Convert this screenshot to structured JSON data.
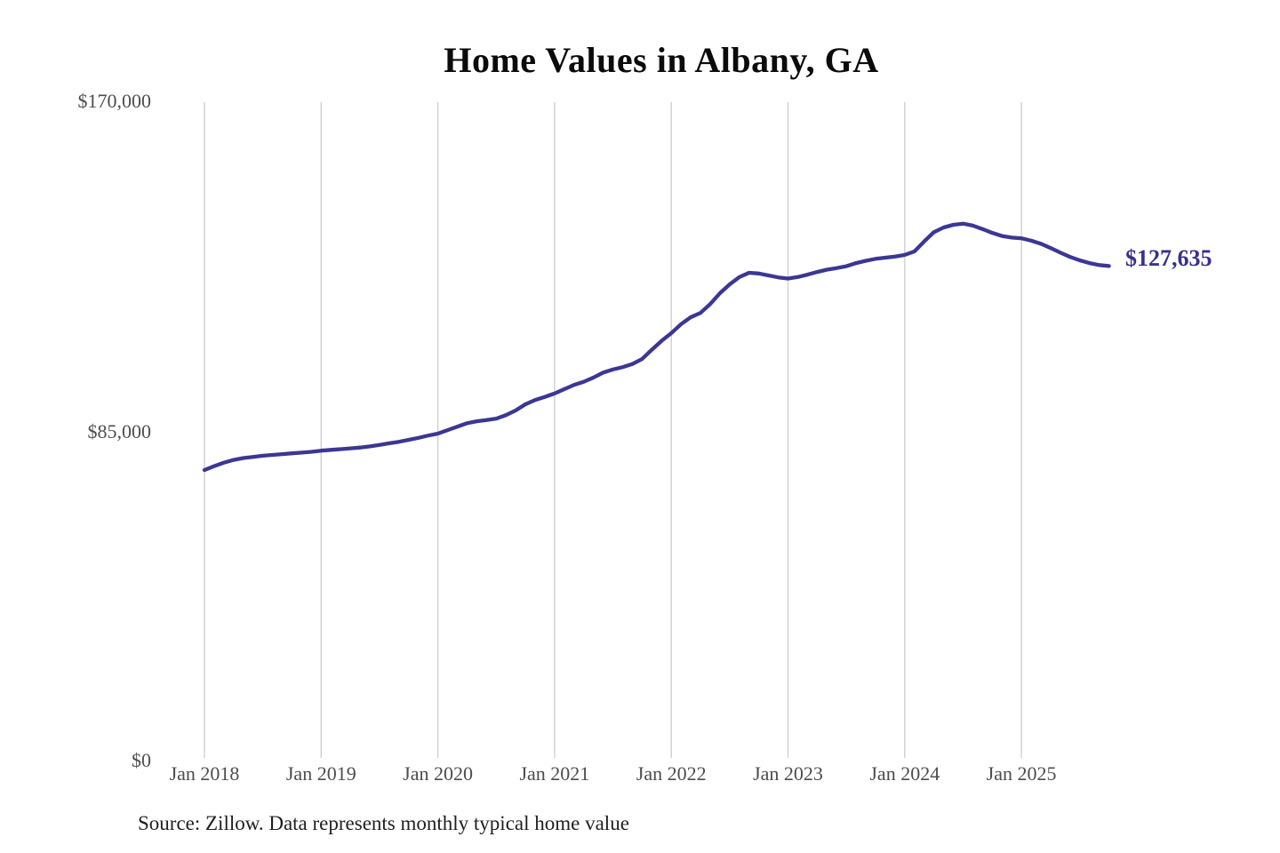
{
  "chart": {
    "title": "Home Values in Albany, GA",
    "end_label": "$127,635",
    "source": "Source: Zillow. Data represents monthly typical home value"
  },
  "colors": {
    "line": "#3b3793",
    "value_label": "#37318c",
    "grid": "#cccccc",
    "axis_label": "#4d4d4d",
    "title": "#0b0b0b",
    "background": "#ffffff"
  },
  "chart_data": {
    "type": "line",
    "title": "Home Values in Albany, GA",
    "xlabel": "",
    "ylabel": "",
    "ylim": [
      0,
      170000
    ],
    "ytick_labels": [
      "$170,000",
      "$85,000",
      "$0"
    ],
    "ytick_values": [
      170000,
      85000,
      0
    ],
    "xtick_labels": [
      "Jan 2018",
      "Jan 2019",
      "Jan 2020",
      "Jan 2021",
      "Jan 2022",
      "Jan 2023",
      "Jan 2024",
      "Jan 2025"
    ],
    "grid": "vertical-only",
    "legend_position": "none",
    "end_annotation": "$127,635",
    "last_value": 127635,
    "frequency": "monthly",
    "x": [
      "Jan 2018",
      "Feb 2018",
      "Mar 2018",
      "Apr 2018",
      "May 2018",
      "Jun 2018",
      "Jul 2018",
      "Aug 2018",
      "Sep 2018",
      "Oct 2018",
      "Nov 2018",
      "Dec 2018",
      "Jan 2019",
      "Feb 2019",
      "Mar 2019",
      "Apr 2019",
      "May 2019",
      "Jun 2019",
      "Jul 2019",
      "Aug 2019",
      "Sep 2019",
      "Oct 2019",
      "Nov 2019",
      "Dec 2019",
      "Jan 2020",
      "Feb 2020",
      "Mar 2020",
      "Apr 2020",
      "May 2020",
      "Jun 2020",
      "Jul 2020",
      "Aug 2020",
      "Sep 2020",
      "Oct 2020",
      "Nov 2020",
      "Dec 2020",
      "Jan 2021",
      "Feb 2021",
      "Mar 2021",
      "Apr 2021",
      "May 2021",
      "Jun 2021",
      "Jul 2021",
      "Aug 2021",
      "Sep 2021",
      "Oct 2021",
      "Nov 2021",
      "Dec 2021",
      "Jan 2022",
      "Feb 2022",
      "Mar 2022",
      "Apr 2022",
      "May 2022",
      "Jun 2022",
      "Jul 2022",
      "Aug 2022",
      "Sep 2022",
      "Oct 2022",
      "Nov 2022",
      "Dec 2022",
      "Jan 2023",
      "Feb 2023",
      "Mar 2023",
      "Apr 2023",
      "May 2023",
      "Jun 2023",
      "Jul 2023",
      "Aug 2023",
      "Sep 2023",
      "Oct 2023",
      "Nov 2023",
      "Dec 2023",
      "Jan 2024",
      "Feb 2024",
      "Mar 2024",
      "Apr 2024",
      "May 2024",
      "Jun 2024",
      "Jul 2024",
      "Aug 2024",
      "Sep 2024",
      "Oct 2024",
      "Nov 2024",
      "Dec 2024",
      "Jan 2025",
      "Feb 2025",
      "Mar 2025",
      "Apr 2025",
      "May 2025",
      "Jun 2025",
      "Jul 2025",
      "Aug 2025",
      "Sep 2025",
      "Oct 2025"
    ],
    "series": [
      {
        "name": "Monthly typical home value",
        "values": [
          74900,
          75900,
          76800,
          77500,
          78000,
          78300,
          78600,
          78800,
          79000,
          79200,
          79400,
          79600,
          79900,
          80100,
          80300,
          80500,
          80700,
          81000,
          81400,
          81800,
          82200,
          82700,
          83200,
          83800,
          84300,
          85200,
          86100,
          87000,
          87500,
          87800,
          88200,
          89100,
          90300,
          91900,
          93000,
          93800,
          94700,
          95800,
          96900,
          97700,
          98800,
          100100,
          100900,
          101500,
          102300,
          103600,
          106000,
          108300,
          110300,
          112600,
          114400,
          115500,
          117800,
          120600,
          122900,
          124800,
          125900,
          125700,
          125200,
          124700,
          124400,
          124800,
          125400,
          126100,
          126700,
          127100,
          127600,
          128400,
          129000,
          129500,
          129800,
          130100,
          130500,
          131400,
          134000,
          136400,
          137600,
          138300,
          138600,
          138100,
          137200,
          136200,
          135400,
          135000,
          134800,
          134200,
          133400,
          132300,
          131100,
          130000,
          129100,
          128400,
          127900,
          127635
        ]
      }
    ]
  }
}
